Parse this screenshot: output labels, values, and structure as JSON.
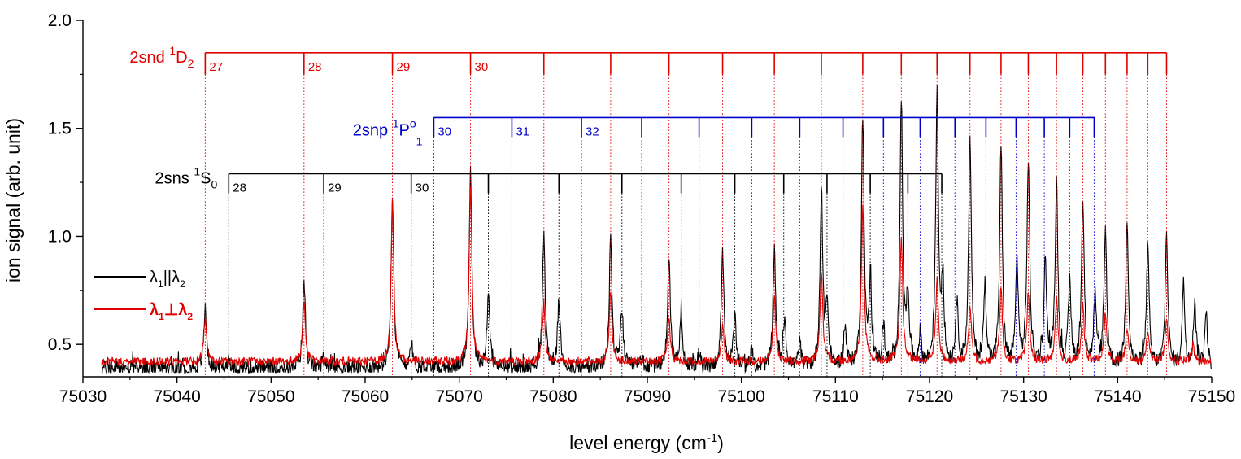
{
  "chart_data": {
    "type": "line",
    "xlabel": "level energy (cm",
    "xlabel_sup": "-1",
    "xlabel_tail": ")",
    "ylabel": "ion signal (arb. unit)",
    "xlim": [
      75030,
      75150
    ],
    "ylim": [
      0.35,
      2.0
    ],
    "x_ticks": [
      75030,
      75040,
      75050,
      75060,
      75070,
      75080,
      75090,
      75100,
      75110,
      75120,
      75130,
      75140,
      75150
    ],
    "y_ticks": [
      0.5,
      1.0,
      1.5,
      2.0
    ],
    "y_tick_labels": [
      "0.5",
      "1.0",
      "1.5",
      "2.0"
    ],
    "legend": {
      "placement": "left",
      "entries": [
        {
          "color": "#000000",
          "text": "λ",
          "sub1": "1",
          "sep": "||λ",
          "sub2": "2"
        },
        {
          "color": "#e00000",
          "text": "λ",
          "sub1": "1",
          "sep": "⊥λ",
          "sub2": "2"
        }
      ]
    },
    "series": [
      {
        "color": "#000000",
        "baseline": 0.39,
        "noise": 0.035,
        "peaks": [
          [
            75043.0,
            0.28
          ],
          [
            75045.5,
            0.05
          ],
          [
            75053.5,
            0.4
          ],
          [
            75055.6,
            0.06
          ],
          [
            75062.9,
            0.8
          ],
          [
            75064.9,
            0.12
          ],
          [
            75071.2,
            0.92
          ],
          [
            75073.1,
            0.34
          ],
          [
            75079.0,
            0.62
          ],
          [
            75080.6,
            0.3
          ],
          [
            75086.1,
            0.6
          ],
          [
            75087.3,
            0.27
          ],
          [
            75089.4,
            0.04
          ],
          [
            75092.3,
            0.52
          ],
          [
            75093.6,
            0.26
          ],
          [
            75095.5,
            0.06
          ],
          [
            75098.0,
            0.52
          ],
          [
            75099.3,
            0.24
          ],
          [
            75101.1,
            0.07
          ],
          [
            75103.5,
            0.55
          ],
          [
            75104.6,
            0.22
          ],
          [
            75106.2,
            0.11
          ],
          [
            75108.5,
            0.8
          ],
          [
            75109.1,
            0.28
          ],
          [
            75111.0,
            0.18
          ],
          [
            75112.9,
            1.16
          ],
          [
            75113.7,
            0.37
          ],
          [
            75115.1,
            0.18
          ],
          [
            75117.0,
            1.22
          ],
          [
            75117.7,
            0.33
          ],
          [
            75119.0,
            0.14
          ],
          [
            75120.8,
            1.26
          ],
          [
            75121.4,
            0.36
          ],
          [
            75122.9,
            0.29
          ],
          [
            75124.3,
            1.05
          ],
          [
            75125.9,
            0.37
          ],
          [
            75127.6,
            1.02
          ],
          [
            75129.3,
            0.48
          ],
          [
            75130.5,
            0.95
          ],
          [
            75132.3,
            0.48
          ],
          [
            75133.5,
            0.85
          ],
          [
            75134.9,
            0.39
          ],
          [
            75136.3,
            0.75
          ],
          [
            75137.6,
            0.32
          ],
          [
            75138.7,
            0.62
          ],
          [
            75141.0,
            0.68
          ],
          [
            75143.2,
            0.55
          ],
          [
            75145.2,
            0.6
          ],
          [
            75147.0,
            0.38
          ],
          [
            75148.2,
            0.3
          ],
          [
            75149.4,
            0.25
          ]
        ]
      },
      {
        "color": "#e00000",
        "baseline": 0.42,
        "noise": 0.02,
        "peaks": [
          [
            75043.0,
            0.2
          ],
          [
            75053.5,
            0.28
          ],
          [
            75062.9,
            0.75
          ],
          [
            75071.2,
            0.82
          ],
          [
            75079.0,
            0.28
          ],
          [
            75086.1,
            0.32
          ],
          [
            75092.3,
            0.2
          ],
          [
            75098.0,
            0.18
          ],
          [
            75103.5,
            0.3
          ],
          [
            75108.5,
            0.42
          ],
          [
            75112.9,
            0.72
          ],
          [
            75117.0,
            0.58
          ],
          [
            75120.8,
            0.38
          ],
          [
            75124.3,
            0.26
          ],
          [
            75127.6,
            0.34
          ],
          [
            75130.5,
            0.32
          ],
          [
            75133.5,
            0.3
          ],
          [
            75136.3,
            0.26
          ],
          [
            75138.7,
            0.22
          ],
          [
            75141.0,
            0.16
          ],
          [
            75143.2,
            0.14
          ],
          [
            75145.2,
            0.2
          ],
          [
            75148.0,
            0.08
          ]
        ]
      }
    ],
    "level_series": [
      {
        "color": "#e00000",
        "label": "2snd",
        "sup": "1",
        "term": "D",
        "sub": "2",
        "bar_y": 1.85,
        "tick_bottom": 1.75,
        "line_style": "dotted",
        "energies": [
          75043.0,
          75053.5,
          75062.9,
          75071.2,
          75079.0,
          75086.1,
          75092.3,
          75098.0,
          75103.5,
          75108.5,
          75112.9,
          75117.0,
          75120.8,
          75124.3,
          75127.6,
          75130.5,
          75133.5,
          75136.3,
          75138.7,
          75141.0,
          75143.2,
          75145.2
        ],
        "numbers": [
          "27",
          "28",
          "29",
          "30"
        ],
        "bar_end": 75145.2
      },
      {
        "color": "#0000cc",
        "label": "2snp",
        "sup": "1",
        "term": "P",
        "sup2": "o",
        "sub": "1",
        "bar_y": 1.55,
        "tick_bottom": 1.46,
        "line_style": "dotted",
        "energies": [
          75067.3,
          75075.6,
          75083.0,
          75089.4,
          75095.5,
          75101.1,
          75106.2,
          75110.8,
          75115.1,
          75119.0,
          75122.7,
          75126.0,
          75129.2,
          75132.2,
          75134.9,
          75137.5
        ],
        "numbers": [
          "30",
          "31",
          "32"
        ],
        "bar_end": 75137.6
      },
      {
        "color": "#000000",
        "label": "2sns",
        "sup": "1",
        "term": "S",
        "sub": "0",
        "bar_y": 1.29,
        "tick_bottom": 1.2,
        "line_style": "dotted",
        "energies": [
          75045.5,
          75055.6,
          75064.9,
          75073.1,
          75080.6,
          75087.3,
          75093.6,
          75099.3,
          75104.5,
          75109.1,
          75113.7,
          75117.7,
          75121.3
        ],
        "numbers": [
          "28",
          "29",
          "30"
        ],
        "bar_end": 75121.3
      }
    ]
  }
}
